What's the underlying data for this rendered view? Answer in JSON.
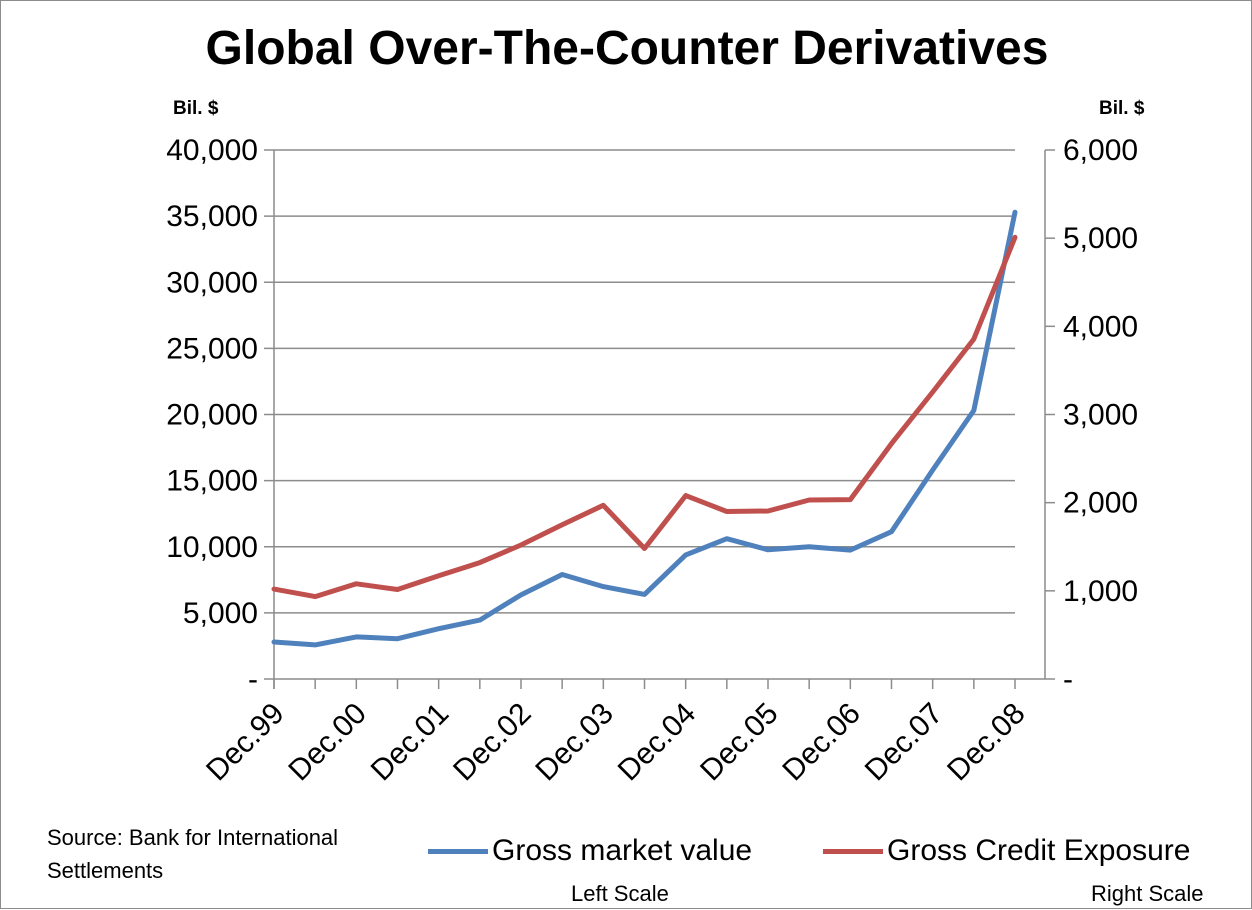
{
  "chart_data": {
    "type": "line",
    "title": "Global Over-The-Counter Derivatives",
    "y_left_unit": "Bil. $",
    "y_right_unit": "Bil. $",
    "x": [
      "Dec.99",
      "Jun.00",
      "Dec.00",
      "Jun.01",
      "Dec.01",
      "Jun.02",
      "Dec.02",
      "Jun.03",
      "Dec.03",
      "Jun.04",
      "Dec.04",
      "Jun.05",
      "Dec.05",
      "Jun.06",
      "Dec.06",
      "Jun.07",
      "Dec.07",
      "Jun.08",
      "Dec.08"
    ],
    "x_tick_labels": [
      "Dec.99",
      "Dec.00",
      "Dec.01",
      "Dec.02",
      "Dec.03",
      "Dec.04",
      "Dec.05",
      "Dec.06",
      "Dec.07",
      "Dec.08"
    ],
    "y_left_ticks": [
      "-",
      "5,000",
      "10,000",
      "15,000",
      "20,000",
      "25,000",
      "30,000",
      "35,000",
      "40,000"
    ],
    "y_right_ticks": [
      "-",
      "1,000",
      "2,000",
      "3,000",
      "4,000",
      "5,000",
      "6,000"
    ],
    "ylim_left": [
      0,
      40000
    ],
    "ylim_right": [
      0,
      6000
    ],
    "grid": true,
    "legend_position": "bottom",
    "series": [
      {
        "name": "Gross market value",
        "axis": "left",
        "scale_label": "Left Scale",
        "color": "#4f81bd",
        "values": [
          2800,
          2580,
          3180,
          3050,
          3800,
          4450,
          6360,
          7900,
          6990,
          6400,
          9380,
          10610,
          9770,
          10000,
          9750,
          11140,
          15800,
          20300,
          35300
        ]
      },
      {
        "name": "Gross Credit Exposure",
        "axis": "right",
        "scale_label": "Right Scale",
        "color": "#c0504d",
        "values": [
          1020,
          935,
          1080,
          1015,
          1170,
          1320,
          1520,
          1750,
          1970,
          1480,
          2080,
          1900,
          1905,
          2030,
          2035,
          2670,
          3255,
          3855,
          5010
        ]
      }
    ]
  },
  "source_note": "Source:  Bank for International Settlements"
}
